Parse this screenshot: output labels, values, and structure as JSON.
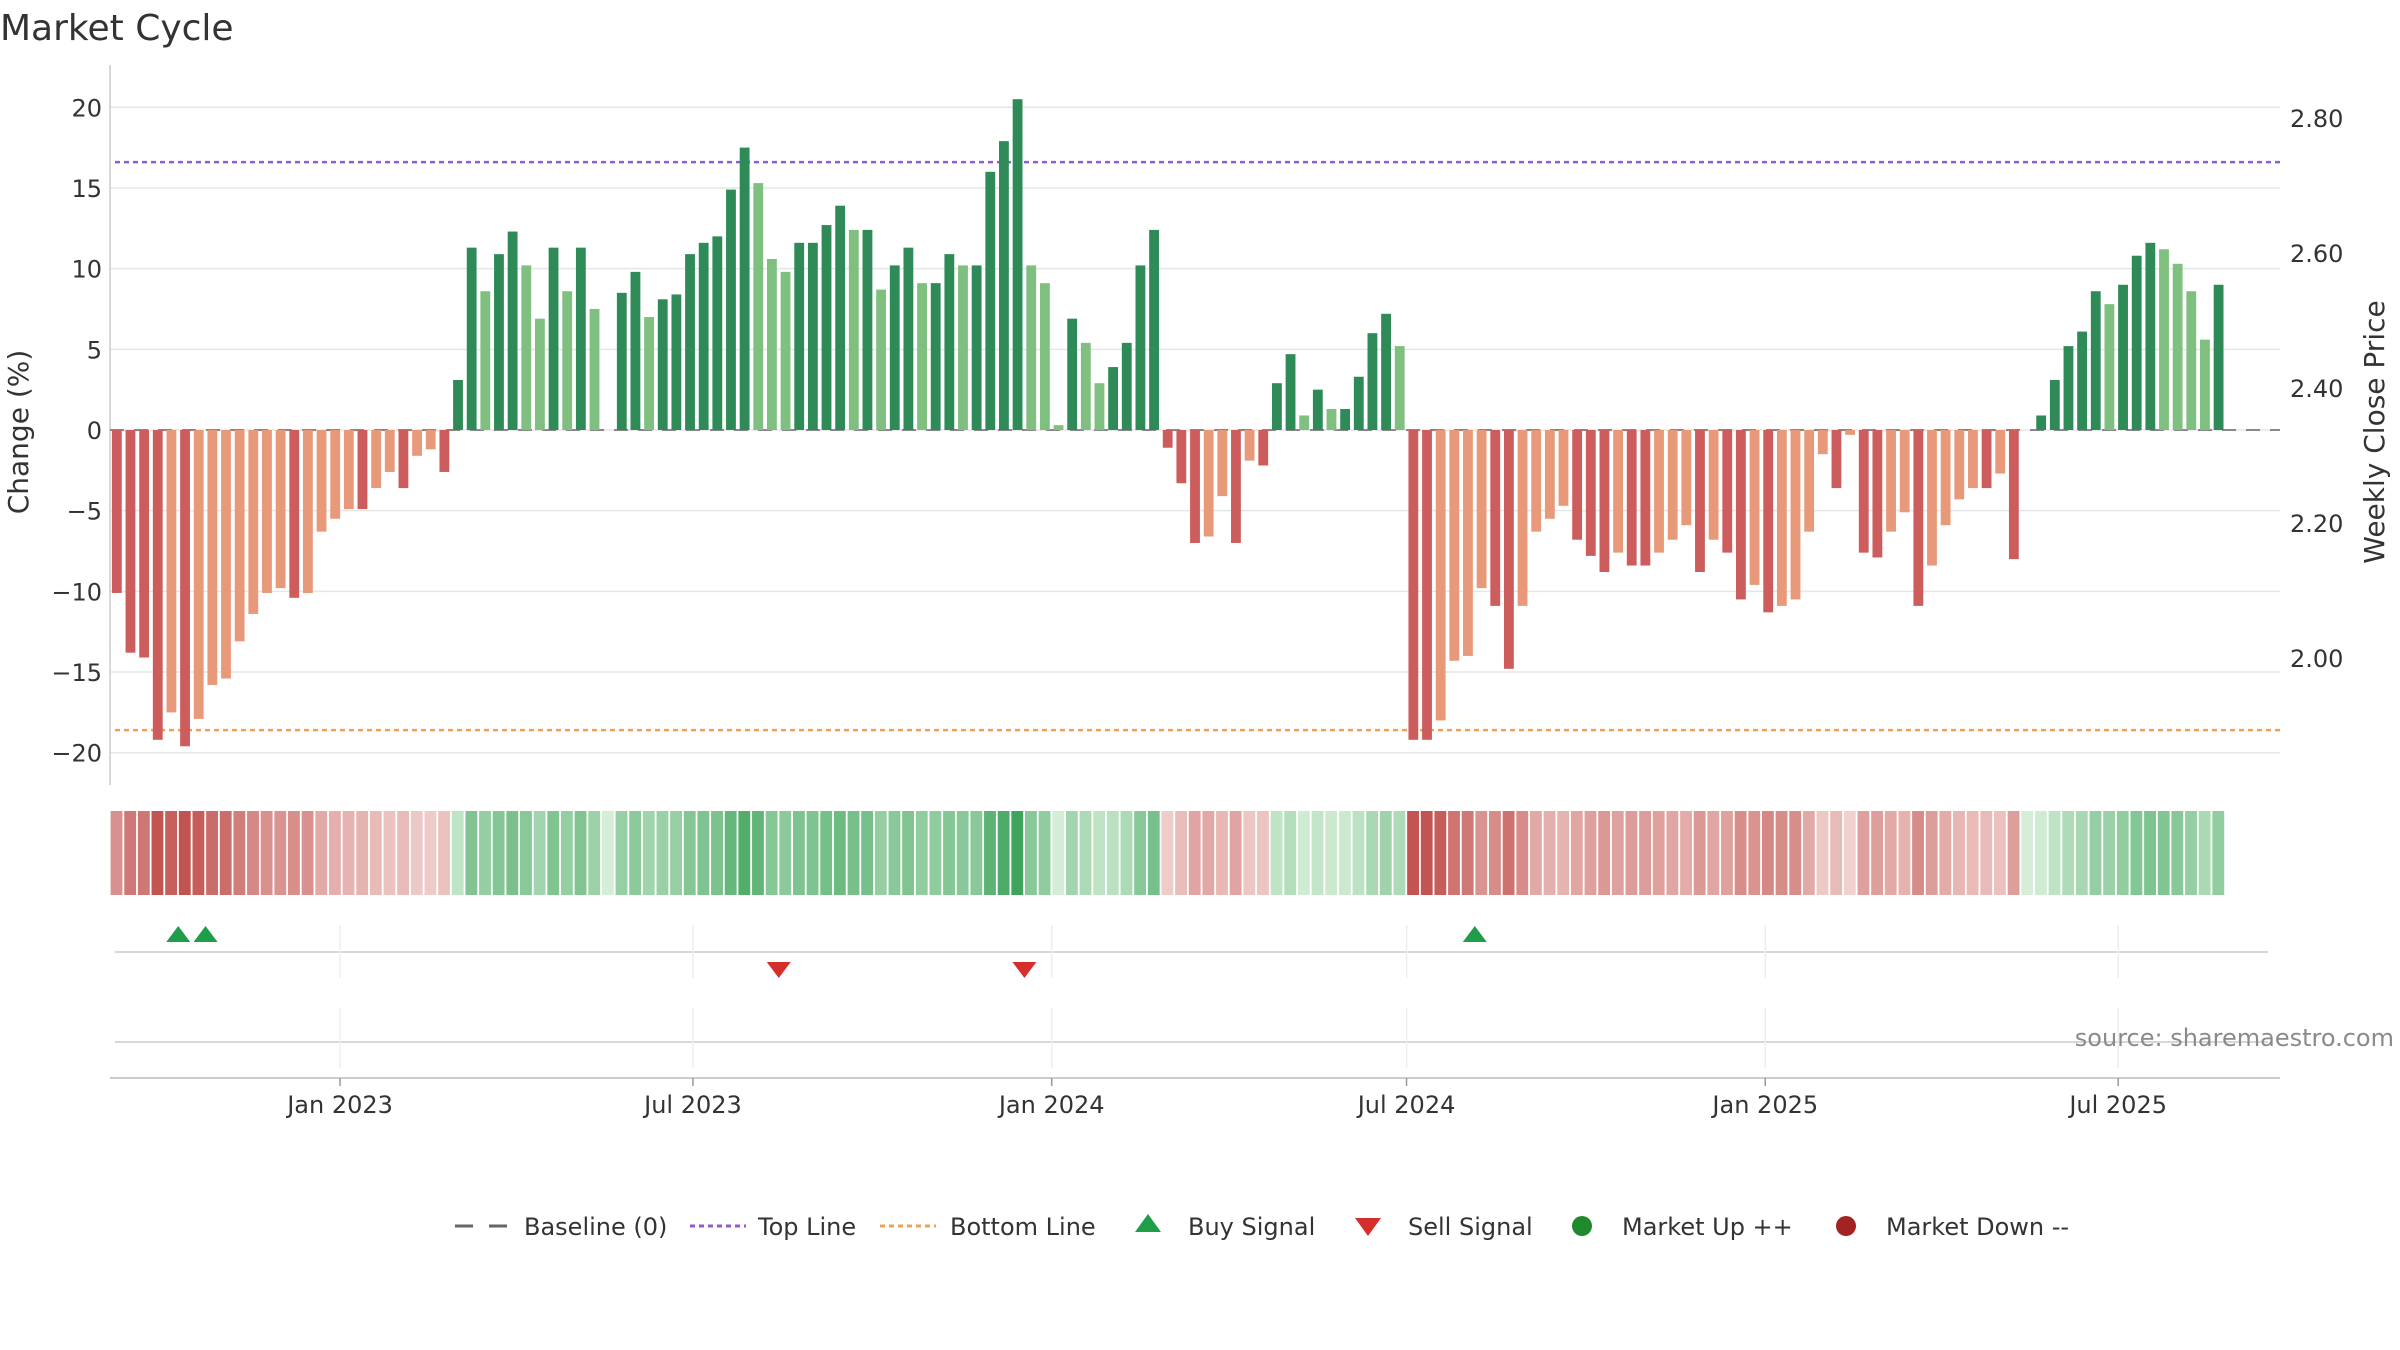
{
  "chart_data": {
    "type": "bar",
    "title": "Market Cycle",
    "ylabel": "Change (%)",
    "y2label": "Weekly Close Price",
    "ylim": [
      -22,
      22
    ],
    "y_ticks": [
      20,
      15,
      10,
      5,
      0,
      -5,
      -10,
      -15,
      -20
    ],
    "y_tick_labels": [
      "20",
      "15",
      "10",
      "5",
      "0",
      "−5",
      "−10",
      "−15",
      "−20"
    ],
    "y2_ticks": [
      "2.80",
      "2.60",
      "2.40",
      "2.20",
      "2.00"
    ],
    "x_range": [
      "2022-09-05",
      "2025-09-22"
    ],
    "x_ticks": [
      {
        "date": "2023-01-01",
        "label": "Jan 2023"
      },
      {
        "date": "2023-07-01",
        "label": "Jul 2023"
      },
      {
        "date": "2024-01-01",
        "label": "Jan 2024"
      },
      {
        "date": "2024-07-01",
        "label": "Jul 2024"
      },
      {
        "date": "2025-01-01",
        "label": "Jan 2025"
      },
      {
        "date": "2025-07-01",
        "label": "Jul 2025"
      }
    ],
    "start_week": "2022-09-05",
    "top_line": 16.6,
    "bottom_line": -18.6,
    "series": [
      {
        "name": "Change (%)",
        "values": [
          -10.1,
          -13.8,
          -14.1,
          -19.2,
          -17.5,
          -19.6,
          -17.9,
          -15.8,
          -15.4,
          -13.1,
          -11.4,
          -10.1,
          -9.8,
          -10.4,
          -10.1,
          -6.3,
          -5.5,
          -4.9,
          -4.9,
          -3.6,
          -2.6,
          -3.6,
          -1.6,
          -1.2,
          -2.6,
          3.1,
          11.3,
          8.6,
          10.9,
          12.3,
          10.2,
          6.9,
          11.3,
          8.6,
          11.3,
          7.5,
          0,
          8.5,
          9.8,
          7.0,
          8.1,
          8.4,
          10.9,
          11.6,
          12.0,
          14.9,
          17.5,
          15.3,
          10.6,
          9.8,
          11.6,
          11.6,
          12.7,
          13.9,
          12.4,
          12.4,
          8.7,
          10.2,
          11.3,
          9.1,
          9.1,
          10.9,
          10.2,
          10.2,
          16.0,
          17.9,
          20.5,
          10.2,
          9.1,
          0.3,
          6.9,
          5.4,
          2.9,
          3.9,
          5.4,
          10.2,
          12.4,
          -1.1,
          -3.3,
          -7.0,
          -6.6,
          -4.1,
          -7.0,
          -1.9,
          -2.2,
          2.9,
          4.7,
          0.9,
          2.5,
          1.3,
          1.3,
          3.3,
          6.0,
          7.2,
          5.2,
          -19.2,
          -19.2,
          -18.0,
          -14.3,
          -14.0,
          -9.8,
          -10.9,
          -14.8,
          -10.9,
          -6.3,
          -5.5,
          -4.7,
          -6.8,
          -7.8,
          -8.8,
          -7.6,
          -8.4,
          -8.4,
          -7.6,
          -6.8,
          -5.9,
          -8.8,
          -6.8,
          -7.6,
          -10.5,
          -9.6,
          -11.3,
          -10.9,
          -10.5,
          -6.3,
          -1.5,
          -3.6,
          -0.3,
          -7.6,
          -7.9,
          -6.3,
          -5.1,
          -10.9,
          -8.4,
          -5.9,
          -4.3,
          -3.6,
          -3.6,
          -2.7,
          -8.0,
          0,
          0.9,
          3.1,
          5.2,
          6.1,
          8.6,
          7.8,
          9.0,
          10.8,
          11.6,
          11.2,
          10.3,
          8.6,
          5.6,
          9.0
        ]
      }
    ],
    "buy_signals": [
      "2022-10-10",
      "2022-10-24",
      "2024-08-05"
    ],
    "sell_signals": [
      "2023-08-14",
      "2023-12-18"
    ],
    "legend": [
      {
        "label": "Baseline (0)",
        "marker": "dash",
        "color": "#666666"
      },
      {
        "label": "Top Line",
        "marker": "dotted",
        "color": "#8e5bd1"
      },
      {
        "label": "Bottom Line",
        "marker": "dotted",
        "color": "#f0a050"
      },
      {
        "label": "Buy Signal",
        "marker": "triangle-up",
        "color": "#1f9e4a"
      },
      {
        "label": "Sell Signal",
        "marker": "triangle-down",
        "color": "#d62d2d"
      },
      {
        "label": "Market Up ++",
        "marker": "circle",
        "color": "#1f8a2b"
      },
      {
        "label": "Market Down --",
        "marker": "circle",
        "color": "#a32323"
      }
    ],
    "legend_position": "bottom-center",
    "grid": true
  },
  "colors": {
    "strong_up": "#2e8b57",
    "weak_up": "#7fbf7f",
    "strong_down": "#cd5c5c",
    "weak_down": "#e8997a",
    "top_line": "#8e5bd1",
    "bottom_line": "#f0a050",
    "buy": "#1f9e4a",
    "sell": "#d62d2d",
    "grid": "#e6e6e6"
  },
  "source": "source: sharemaestro.com"
}
